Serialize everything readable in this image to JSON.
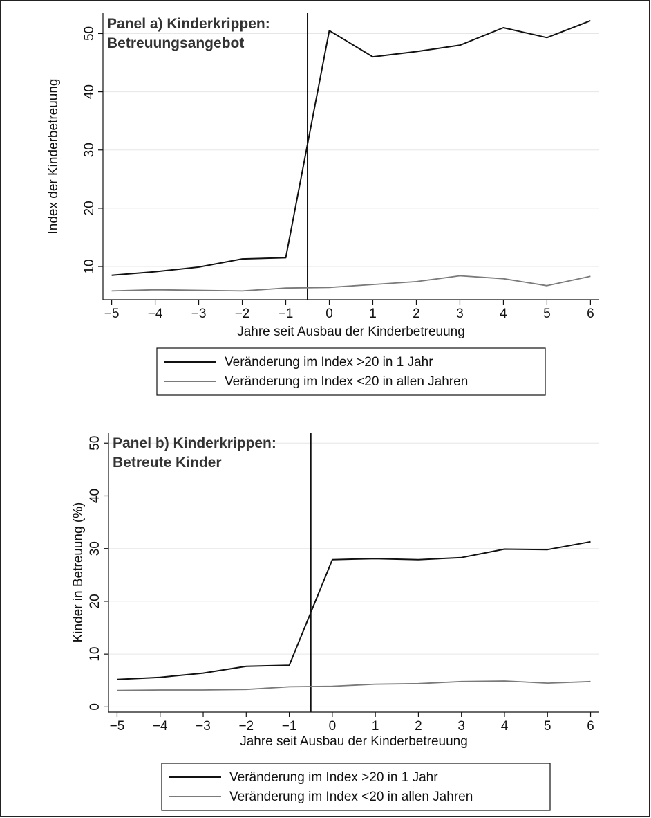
{
  "chart_data": [
    {
      "type": "line",
      "title": "Panel a) Kinderkrippen:",
      "subtitle": "Betreuungsangebot",
      "xlabel": "Jahre seit Ausbau der Kinderbetreuung",
      "ylabel": "Index der Kinderbetreuung",
      "x": [
        -5,
        -4,
        -3,
        -2,
        -1,
        0,
        1,
        2,
        3,
        4,
        5,
        6
      ],
      "xticks": [
        "−5",
        "−4",
        "−3",
        "−2",
        "−1",
        "0",
        "1",
        "2",
        "3",
        "4",
        "5",
        "6"
      ],
      "yticks": [
        "10",
        "20",
        "30",
        "40",
        "50"
      ],
      "xlim": [
        -5.2,
        6.2
      ],
      "ylim": [
        4.3,
        53.5
      ],
      "event_line_x": -0.5,
      "grid": true,
      "legend": "bottom",
      "series": [
        {
          "name": "Veränderung im Index >20 in 1 Jahr",
          "color": "#111111",
          "values": [
            8.5,
            9.1,
            9.9,
            11.3,
            11.5,
            50.5,
            46.0,
            46.9,
            48.0,
            51.0,
            49.3,
            52.2
          ]
        },
        {
          "name": "Veränderung im Index <20 in allen Jahren",
          "color": "#7a7a7a",
          "values": [
            5.8,
            6.0,
            5.9,
            5.8,
            6.3,
            6.4,
            6.9,
            7.4,
            8.4,
            7.9,
            6.7,
            8.3
          ]
        }
      ]
    },
    {
      "type": "line",
      "title": "Panel b) Kinderkrippen:",
      "subtitle": "Betreute Kinder",
      "xlabel": "Jahre seit Ausbau der Kinderbetreuung",
      "ylabel": "Kinder in Betreuung (%)",
      "x": [
        -5,
        -4,
        -3,
        -2,
        -1,
        0,
        1,
        2,
        3,
        4,
        5,
        6
      ],
      "xticks": [
        "−5",
        "−4",
        "−3",
        "−2",
        "−1",
        "0",
        "1",
        "2",
        "3",
        "4",
        "5",
        "6"
      ],
      "yticks": [
        "0",
        "10",
        "20",
        "30",
        "40",
        "50"
      ],
      "xlim": [
        -5.2,
        6.2
      ],
      "ylim": [
        -1.0,
        52.0
      ],
      "event_line_x": -0.5,
      "grid": true,
      "legend": "bottom",
      "series": [
        {
          "name": "Veränderung im Index >20 in 1 Jahr",
          "color": "#111111",
          "values": [
            5.2,
            5.6,
            6.4,
            7.7,
            7.9,
            27.9,
            28.1,
            27.9,
            28.3,
            29.9,
            29.8,
            31.3
          ]
        },
        {
          "name": "Veränderung im Index <20 in allen Jahren",
          "color": "#7a7a7a",
          "values": [
            3.1,
            3.2,
            3.2,
            3.3,
            3.8,
            3.9,
            4.3,
            4.4,
            4.8,
            4.9,
            4.5,
            4.8
          ]
        }
      ]
    }
  ]
}
